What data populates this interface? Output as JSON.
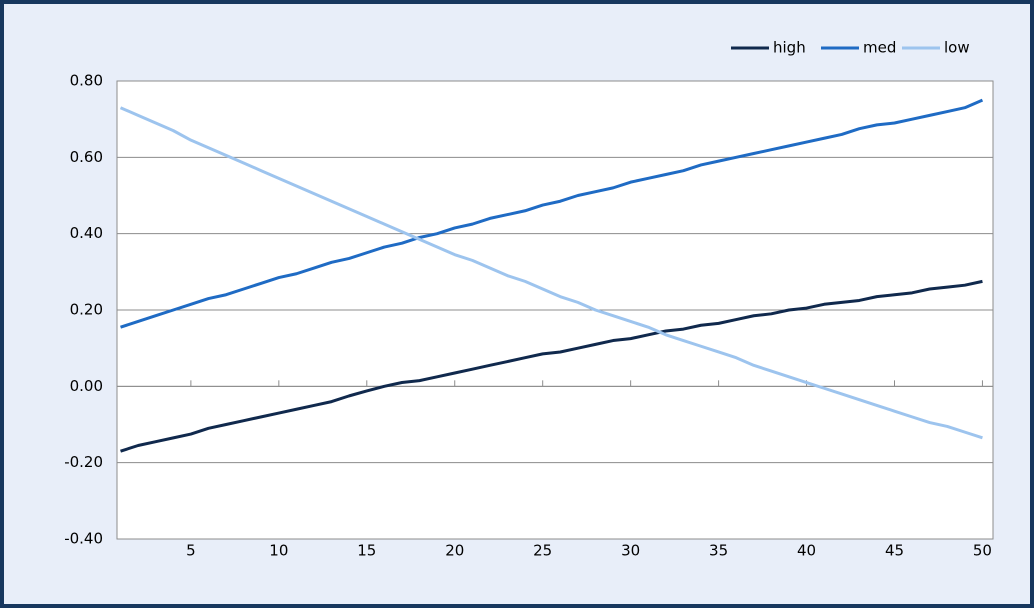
{
  "chart_data": {
    "type": "line",
    "x": [
      1,
      2,
      3,
      4,
      5,
      6,
      7,
      8,
      9,
      10,
      11,
      12,
      13,
      14,
      15,
      16,
      17,
      18,
      19,
      20,
      21,
      22,
      23,
      24,
      25,
      26,
      27,
      28,
      29,
      30,
      31,
      32,
      33,
      34,
      35,
      36,
      37,
      38,
      39,
      40,
      41,
      42,
      43,
      44,
      45,
      46,
      47,
      48,
      49,
      50
    ],
    "series": [
      {
        "name": "high",
        "color": "#10294d",
        "values": [
          -0.17,
          -0.155,
          -0.145,
          -0.135,
          -0.125,
          -0.11,
          -0.1,
          -0.09,
          -0.08,
          -0.07,
          -0.06,
          -0.05,
          -0.04,
          -0.025,
          -0.012,
          0.0,
          0.01,
          0.015,
          0.025,
          0.035,
          0.045,
          0.055,
          0.065,
          0.075,
          0.085,
          0.09,
          0.1,
          0.11,
          0.12,
          0.125,
          0.135,
          0.145,
          0.15,
          0.16,
          0.165,
          0.175,
          0.185,
          0.19,
          0.2,
          0.205,
          0.215,
          0.22,
          0.225,
          0.235,
          0.24,
          0.245,
          0.255,
          0.26,
          0.265,
          0.275
        ]
      },
      {
        "name": "med",
        "color": "#1f6bc4",
        "values": [
          0.155,
          0.17,
          0.185,
          0.2,
          0.215,
          0.23,
          0.24,
          0.255,
          0.27,
          0.285,
          0.295,
          0.31,
          0.325,
          0.335,
          0.35,
          0.365,
          0.375,
          0.39,
          0.4,
          0.415,
          0.425,
          0.44,
          0.45,
          0.46,
          0.475,
          0.485,
          0.5,
          0.51,
          0.52,
          0.535,
          0.545,
          0.555,
          0.565,
          0.58,
          0.59,
          0.6,
          0.61,
          0.62,
          0.63,
          0.64,
          0.65,
          0.66,
          0.675,
          0.685,
          0.69,
          0.7,
          0.71,
          0.72,
          0.73,
          0.75
        ]
      },
      {
        "name": "low",
        "color": "#9dc4ee",
        "values": [
          0.73,
          0.71,
          0.69,
          0.67,
          0.645,
          0.625,
          0.605,
          0.585,
          0.565,
          0.545,
          0.525,
          0.505,
          0.485,
          0.465,
          0.445,
          0.425,
          0.405,
          0.385,
          0.365,
          0.345,
          0.33,
          0.31,
          0.29,
          0.275,
          0.255,
          0.235,
          0.22,
          0.2,
          0.185,
          0.17,
          0.155,
          0.135,
          0.12,
          0.105,
          0.09,
          0.075,
          0.055,
          0.04,
          0.025,
          0.01,
          -0.005,
          -0.02,
          -0.035,
          -0.05,
          -0.065,
          -0.08,
          -0.095,
          -0.105,
          -0.12,
          -0.135
        ]
      }
    ],
    "xlim": [
      0.8,
      50.6
    ],
    "xticks": [
      5,
      10,
      15,
      20,
      25,
      30,
      35,
      40,
      45,
      50
    ],
    "ylim": [
      -0.4,
      0.8
    ],
    "yticks": [
      {
        "value": -0.4,
        "label": "-0.40"
      },
      {
        "value": -0.2,
        "label": "-0.20"
      },
      {
        "value": 0,
        "label": "0.00"
      },
      {
        "value": 0.2,
        "label": "0.20"
      },
      {
        "value": 0.4,
        "label": "0.40"
      },
      {
        "value": 0.6,
        "label": "0.60"
      },
      {
        "value": 0.8,
        "label": "0.80"
      }
    ],
    "grid": true,
    "legend": "top-right"
  }
}
